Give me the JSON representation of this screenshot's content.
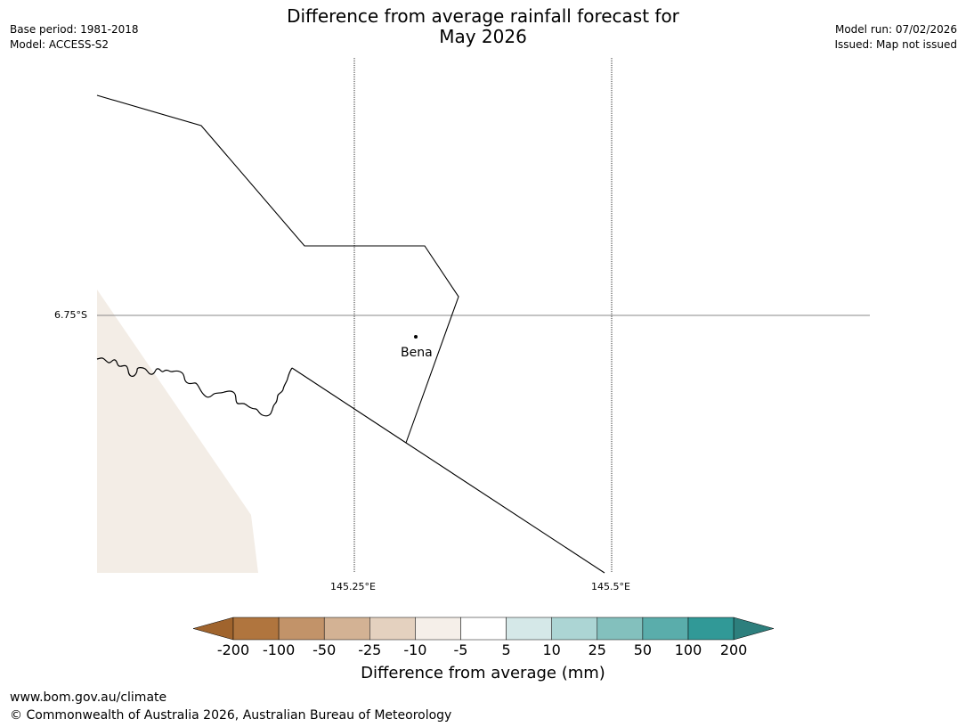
{
  "title": {
    "line1": "Difference from average rainfall forecast for",
    "line2": "May 2026"
  },
  "meta_left": {
    "base_period": "Base period: 1981-2018",
    "model": "Model: ACCESS-S2"
  },
  "meta_right": {
    "model_run": "Model run: 07/02/2026",
    "issued": "Issued: Map not issued"
  },
  "map": {
    "latitude_label": "6.75°S",
    "longitude_labels": [
      "145.25°E",
      "145.5°E"
    ],
    "place": "Bena",
    "land_fill_color": "#f3ede6",
    "line_color": "#000000"
  },
  "colorbar": {
    "label": "Difference from average (mm)",
    "ticks": [
      "-200",
      "-100",
      "-50",
      "-25",
      "-10",
      "-5",
      "5",
      "10",
      "25",
      "50",
      "100",
      "200"
    ],
    "colors": [
      "#a0642d",
      "#b0753e",
      "#c29369",
      "#d3b294",
      "#e4d1bf",
      "#f5efe9",
      "#ffffff",
      "#d5e8e8",
      "#acd5d4",
      "#83c0bd",
      "#5aadab",
      "#319997",
      "#2d7f7d"
    ]
  },
  "footer": {
    "url": "www.bom.gov.au/climate",
    "copyright": "© Commonwealth of Australia 2026, Australian Bureau of Meteorology"
  }
}
